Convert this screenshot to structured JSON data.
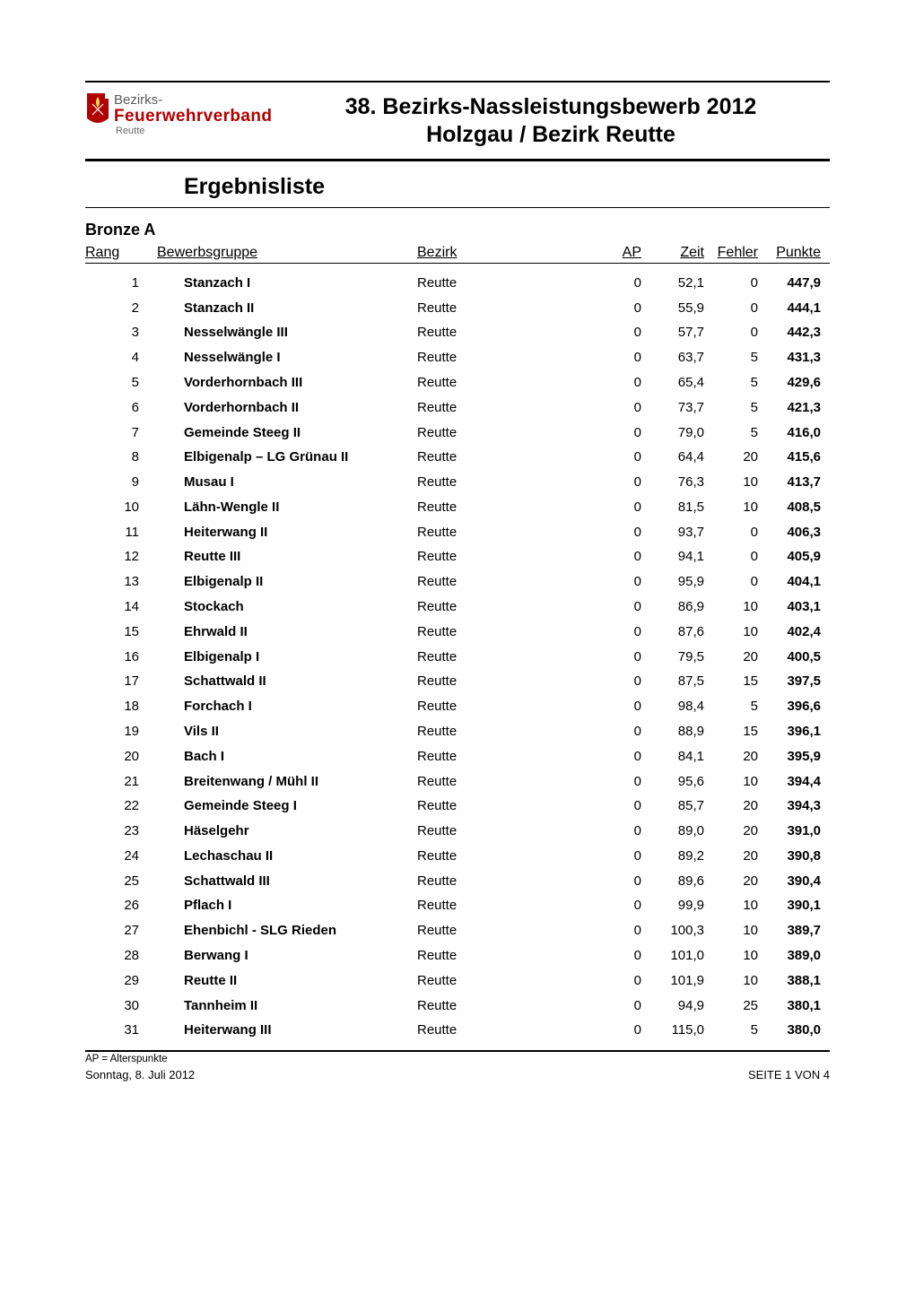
{
  "logo": {
    "line1": "Bezirks-",
    "line2": "Feuerwehrverband",
    "line3": "Reutte"
  },
  "title_line1": "38. Bezirks-Nassleistungsbewerb 2012",
  "title_line2": "Holzgau / Bezirk Reutte",
  "results_heading": "Ergebnisliste",
  "category": "Bronze A",
  "columns": {
    "rang": "Rang",
    "group": "Bewerbsgruppe",
    "bezirk": "Bezirk",
    "ap": "AP",
    "zeit": "Zeit",
    "fehler": "Fehler",
    "punkte": "Punkte"
  },
  "rows": [
    {
      "rang": "1",
      "group": "Stanzach I",
      "bezirk": "Reutte",
      "ap": "0",
      "zeit": "52,1",
      "fehler": "0",
      "punkte": "447,9"
    },
    {
      "rang": "2",
      "group": "Stanzach II",
      "bezirk": "Reutte",
      "ap": "0",
      "zeit": "55,9",
      "fehler": "0",
      "punkte": "444,1"
    },
    {
      "rang": "3",
      "group": "Nesselwängle III",
      "bezirk": "Reutte",
      "ap": "0",
      "zeit": "57,7",
      "fehler": "0",
      "punkte": "442,3"
    },
    {
      "rang": "4",
      "group": "Nesselwängle I",
      "bezirk": "Reutte",
      "ap": "0",
      "zeit": "63,7",
      "fehler": "5",
      "punkte": "431,3"
    },
    {
      "rang": "5",
      "group": "Vorderhornbach III",
      "bezirk": "Reutte",
      "ap": "0",
      "zeit": "65,4",
      "fehler": "5",
      "punkte": "429,6"
    },
    {
      "rang": "6",
      "group": "Vorderhornbach II",
      "bezirk": "Reutte",
      "ap": "0",
      "zeit": "73,7",
      "fehler": "5",
      "punkte": "421,3"
    },
    {
      "rang": "7",
      "group": "Gemeinde Steeg II",
      "bezirk": "Reutte",
      "ap": "0",
      "zeit": "79,0",
      "fehler": "5",
      "punkte": "416,0"
    },
    {
      "rang": "8",
      "group": "Elbigenalp – LG Grünau II",
      "bezirk": "Reutte",
      "ap": "0",
      "zeit": "64,4",
      "fehler": "20",
      "punkte": "415,6"
    },
    {
      "rang": "9",
      "group": "Musau I",
      "bezirk": "Reutte",
      "ap": "0",
      "zeit": "76,3",
      "fehler": "10",
      "punkte": "413,7"
    },
    {
      "rang": "10",
      "group": "Lähn-Wengle II",
      "bezirk": "Reutte",
      "ap": "0",
      "zeit": "81,5",
      "fehler": "10",
      "punkte": "408,5"
    },
    {
      "rang": "11",
      "group": "Heiterwang II",
      "bezirk": "Reutte",
      "ap": "0",
      "zeit": "93,7",
      "fehler": "0",
      "punkte": "406,3"
    },
    {
      "rang": "12",
      "group": "Reutte III",
      "bezirk": "Reutte",
      "ap": "0",
      "zeit": "94,1",
      "fehler": "0",
      "punkte": "405,9"
    },
    {
      "rang": "13",
      "group": "Elbigenalp II",
      "bezirk": "Reutte",
      "ap": "0",
      "zeit": "95,9",
      "fehler": "0",
      "punkte": "404,1"
    },
    {
      "rang": "14",
      "group": "Stockach",
      "bezirk": "Reutte",
      "ap": "0",
      "zeit": "86,9",
      "fehler": "10",
      "punkte": "403,1"
    },
    {
      "rang": "15",
      "group": "Ehrwald II",
      "bezirk": "Reutte",
      "ap": "0",
      "zeit": "87,6",
      "fehler": "10",
      "punkte": "402,4"
    },
    {
      "rang": "16",
      "group": "Elbigenalp I",
      "bezirk": "Reutte",
      "ap": "0",
      "zeit": "79,5",
      "fehler": "20",
      "punkte": "400,5"
    },
    {
      "rang": "17",
      "group": "Schattwald II",
      "bezirk": "Reutte",
      "ap": "0",
      "zeit": "87,5",
      "fehler": "15",
      "punkte": "397,5"
    },
    {
      "rang": "18",
      "group": "Forchach I",
      "bezirk": "Reutte",
      "ap": "0",
      "zeit": "98,4",
      "fehler": "5",
      "punkte": "396,6"
    },
    {
      "rang": "19",
      "group": "Vils II",
      "bezirk": "Reutte",
      "ap": "0",
      "zeit": "88,9",
      "fehler": "15",
      "punkte": "396,1"
    },
    {
      "rang": "20",
      "group": "Bach I",
      "bezirk": "Reutte",
      "ap": "0",
      "zeit": "84,1",
      "fehler": "20",
      "punkte": "395,9"
    },
    {
      "rang": "21",
      "group": "Breitenwang / Mühl II",
      "bezirk": "Reutte",
      "ap": "0",
      "zeit": "95,6",
      "fehler": "10",
      "punkte": "394,4"
    },
    {
      "rang": "22",
      "group": "Gemeinde Steeg I",
      "bezirk": "Reutte",
      "ap": "0",
      "zeit": "85,7",
      "fehler": "20",
      "punkte": "394,3"
    },
    {
      "rang": "23",
      "group": "Häselgehr",
      "bezirk": "Reutte",
      "ap": "0",
      "zeit": "89,0",
      "fehler": "20",
      "punkte": "391,0"
    },
    {
      "rang": "24",
      "group": "Lechaschau II",
      "bezirk": "Reutte",
      "ap": "0",
      "zeit": "89,2",
      "fehler": "20",
      "punkte": "390,8"
    },
    {
      "rang": "25",
      "group": "Schattwald III",
      "bezirk": "Reutte",
      "ap": "0",
      "zeit": "89,6",
      "fehler": "20",
      "punkte": "390,4"
    },
    {
      "rang": "26",
      "group": "Pflach I",
      "bezirk": "Reutte",
      "ap": "0",
      "zeit": "99,9",
      "fehler": "10",
      "punkte": "390,1"
    },
    {
      "rang": "27",
      "group": "Ehenbichl - SLG Rieden",
      "bezirk": "Reutte",
      "ap": "0",
      "zeit": "100,3",
      "fehler": "10",
      "punkte": "389,7"
    },
    {
      "rang": "28",
      "group": "Berwang I",
      "bezirk": "Reutte",
      "ap": "0",
      "zeit": "101,0",
      "fehler": "10",
      "punkte": "389,0"
    },
    {
      "rang": "29",
      "group": "Reutte II",
      "bezirk": "Reutte",
      "ap": "0",
      "zeit": "101,9",
      "fehler": "10",
      "punkte": "388,1"
    },
    {
      "rang": "30",
      "group": "Tannheim II",
      "bezirk": "Reutte",
      "ap": "0",
      "zeit": "94,9",
      "fehler": "25",
      "punkte": "380,1"
    },
    {
      "rang": "31",
      "group": "Heiterwang III",
      "bezirk": "Reutte",
      "ap": "0",
      "zeit": "115,0",
      "fehler": "5",
      "punkte": "380,0"
    }
  ],
  "footnote": "AP = Alterspunkte",
  "footer_left": "Sonntag, 8. Juli 2012",
  "footer_right": "SEITE 1 VON 4"
}
